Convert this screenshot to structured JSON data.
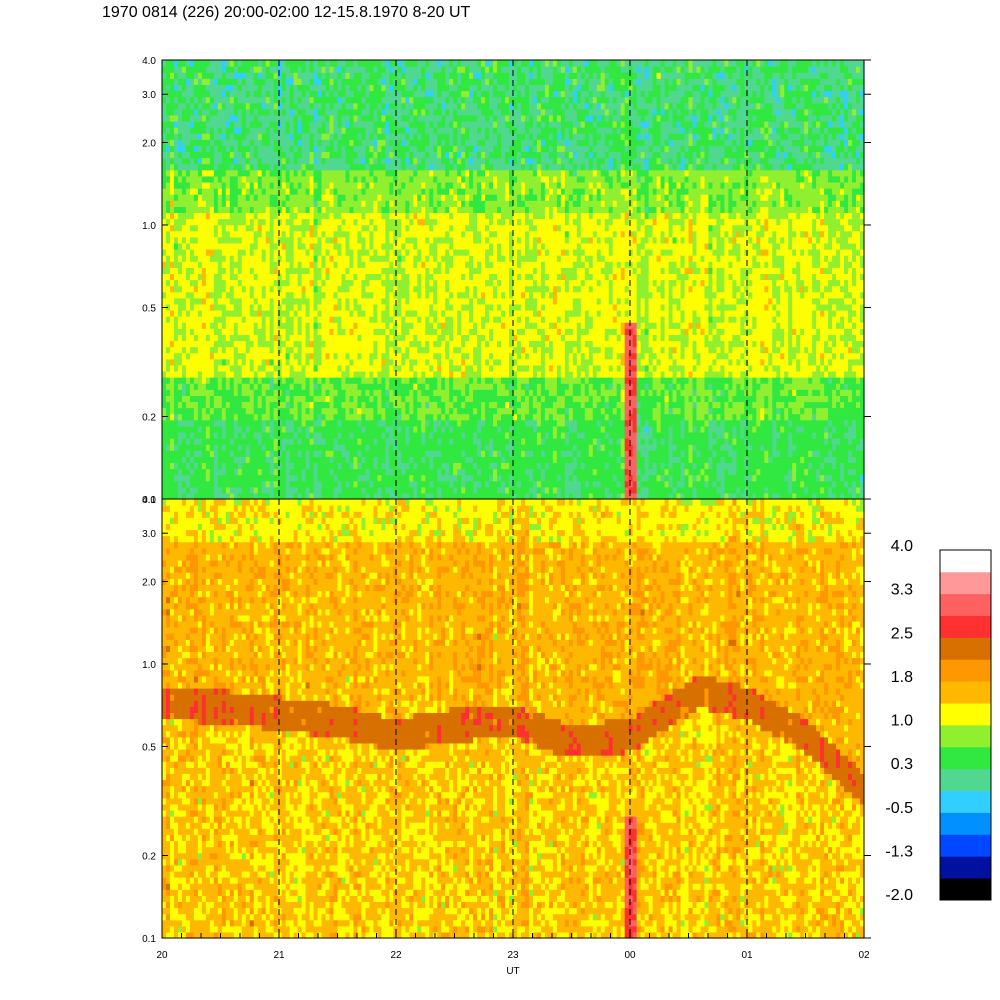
{
  "title": "1970 0814 (226) 20:00-02:00 12-15.8.1970  8-20 UT",
  "chart_data": [
    {
      "type": "heatmap",
      "panel": "upper",
      "y_scale": "log",
      "ylim": [
        0.1,
        4.0
      ],
      "yticks": [
        "0.1",
        "0.2",
        "0.5",
        "1.0",
        "2.0",
        "3.0",
        "4.0"
      ],
      "ytick_values": [
        0.1,
        0.2,
        0.5,
        1.0,
        2.0,
        3.0,
        4.0
      ],
      "xticks": [
        "20",
        "21",
        "22",
        "23",
        "00",
        "01",
        "02"
      ],
      "xlabel": "UT",
      "dashed_lines_at": [
        "21",
        "22",
        "23",
        "00",
        "01"
      ],
      "dominant_levels": {
        "low_freq": 0.3,
        "mid_freq": 1.0,
        "high_freq": 0.3
      }
    },
    {
      "type": "heatmap",
      "panel": "lower",
      "y_scale": "log",
      "ylim": [
        0.1,
        4.0
      ],
      "yticks": [
        "0.1",
        "0.2",
        "0.5",
        "1.0",
        "2.0",
        "3.0",
        "4.0"
      ],
      "ytick_values": [
        0.1,
        0.2,
        0.5,
        1.0,
        2.0,
        3.0,
        4.0
      ],
      "xticks": [
        "20",
        "21",
        "22",
        "23",
        "00",
        "01",
        "02"
      ],
      "xlabel": "UT",
      "dashed_lines_at": [
        "21",
        "22",
        "23",
        "00",
        "01"
      ],
      "dominant_levels": {
        "background": 1.6,
        "band": 2.2,
        "high_freq": 1.3
      },
      "band_center_trace": [
        {
          "x": 20.0,
          "y": 0.72
        },
        {
          "x": 20.5,
          "y": 0.7
        },
        {
          "x": 21.0,
          "y": 0.66
        },
        {
          "x": 21.5,
          "y": 0.62
        },
        {
          "x": 22.0,
          "y": 0.55
        },
        {
          "x": 22.5,
          "y": 0.6
        },
        {
          "x": 23.0,
          "y": 0.62
        },
        {
          "x": 23.5,
          "y": 0.52
        },
        {
          "x": 24.0,
          "y": 0.55
        },
        {
          "x": 24.6,
          "y": 0.8
        },
        {
          "x": 25.0,
          "y": 0.72
        },
        {
          "x": 25.5,
          "y": 0.55
        },
        {
          "x": 26.0,
          "y": 0.35
        }
      ]
    }
  ],
  "colorbar": {
    "labels": [
      "4.0",
      "3.3",
      "2.5",
      "1.8",
      "1.0",
      "0.3",
      "-0.5",
      "-1.3",
      "-2.0"
    ],
    "colors": [
      "#000000",
      "#0010a0",
      "#0048ff",
      "#0090ff",
      "#30cfff",
      "#50d890",
      "#30e840",
      "#90f030",
      "#ffff00",
      "#ffb800",
      "#ff9800",
      "#d87000",
      "#ff3030",
      "#ff6060",
      "#ff9898",
      "#ffffff"
    ]
  }
}
